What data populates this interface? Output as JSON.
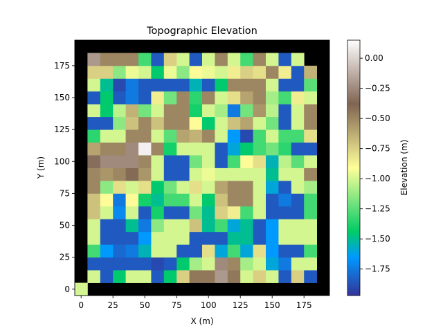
{
  "chart_data": {
    "type": "heatmap",
    "title": "Topographic Elevation",
    "xlabel": "X (m)",
    "ylabel": "Y (m)",
    "colorbar_label": "Elevation (m)",
    "colormap": "terrain",
    "xlim": [
      -5,
      195
    ],
    "ylim": [
      -5,
      195
    ],
    "xticks": [
      0,
      25,
      50,
      75,
      100,
      125,
      150,
      175
    ],
    "yticks": [
      0,
      25,
      50,
      75,
      100,
      125,
      150,
      175
    ],
    "color_range": [
      -1.97,
      0.15
    ],
    "colorbar_ticks": [
      0.0,
      -0.25,
      -0.5,
      -0.75,
      -1.0,
      -1.25,
      -1.5,
      -1.75
    ],
    "grid": false,
    "cell_size": 10,
    "x_origin": 0,
    "y_origin": 0,
    "background_value": "black",
    "elevations": [
      [
        -1.0,
        null,
        null,
        null,
        null,
        null,
        null,
        null,
        null,
        null,
        null,
        null,
        null,
        null,
        null,
        null,
        null,
        null,
        null,
        null
      ],
      [
        null,
        -1.0,
        -1.85,
        -1.45,
        -1.0,
        -1.0,
        -1.85,
        -1.45,
        -0.75,
        -0.45,
        -0.45,
        -0.2,
        -0.45,
        -1.0,
        -0.75,
        -1.0,
        -1.85,
        -0.75,
        -1.85,
        null
      ],
      [
        null,
        -1.85,
        -1.85,
        -1.85,
        -1.85,
        -1.85,
        -1.9,
        -1.85,
        -1.45,
        -1.1,
        -1.0,
        -0.25,
        -0.5,
        -1.1,
        -1.0,
        -1.6,
        -1.75,
        -1.0,
        -1.0,
        null
      ],
      [
        null,
        -1.3,
        -1.65,
        -1.8,
        -1.75,
        -1.55,
        -1.0,
        -1.0,
        -1.85,
        -1.85,
        -0.8,
        -1.6,
        -1.3,
        -1.6,
        -0.8,
        -1.65,
        -1.85,
        -1.85,
        -1.3,
        null
      ],
      [
        null,
        -1.0,
        -1.85,
        -1.85,
        -1.85,
        -1.65,
        -1.0,
        -1.0,
        -1.0,
        -1.85,
        -1.85,
        -1.85,
        -1.5,
        -1.5,
        -1.85,
        -1.65,
        -1.0,
        -1.0,
        -1.0,
        null
      ],
      [
        null,
        -1.0,
        -1.85,
        -1.85,
        -1.5,
        -1.75,
        -1.15,
        -1.0,
        -1.0,
        -0.7,
        -1.5,
        -1.3,
        -1.6,
        -1.5,
        -1.85,
        -1.65,
        -1.0,
        -1.0,
        -1.0,
        null
      ],
      [
        null,
        -0.7,
        -1.0,
        -1.7,
        -1.0,
        -1.85,
        -1.4,
        -1.85,
        -1.85,
        -1.2,
        -1.5,
        -0.75,
        -0.85,
        -1.3,
        -1.0,
        -1.85,
        -1.85,
        -1.85,
        -1.3,
        null
      ],
      [
        null,
        -0.7,
        -0.9,
        -1.75,
        -0.9,
        -1.4,
        -1.5,
        -1.3,
        -1.3,
        -1.0,
        -1.45,
        -0.7,
        -0.5,
        -0.5,
        -1.0,
        -1.85,
        -1.75,
        -1.85,
        -1.3,
        null
      ],
      [
        null,
        -0.5,
        -1.15,
        -0.8,
        -1.0,
        -0.8,
        -1.45,
        -1.2,
        -1.0,
        -0.8,
        -1.0,
        -0.6,
        -0.5,
        -0.5,
        -1.0,
        -1.6,
        -1.85,
        -1.0,
        -1.1,
        null
      ],
      [
        null,
        -0.5,
        -0.55,
        -0.5,
        -0.4,
        -0.55,
        -1.0,
        -1.85,
        -1.85,
        -1.0,
        -0.95,
        -1.0,
        -1.0,
        -1.0,
        -1.0,
        -1.5,
        -1.0,
        -1.0,
        -0.5,
        null
      ],
      [
        null,
        -0.35,
        -0.25,
        -0.25,
        -0.25,
        -0.5,
        -1.0,
        -1.85,
        -1.85,
        -1.2,
        -1.0,
        -1.85,
        -1.3,
        -0.9,
        -0.8,
        -1.55,
        -1.05,
        -1.25,
        -1.0,
        null
      ],
      [
        null,
        -0.6,
        -0.5,
        -0.5,
        -0.25,
        0.1,
        -0.5,
        -1.4,
        -1.0,
        -1.0,
        -1.0,
        -1.85,
        -1.6,
        -1.45,
        -1.3,
        -1.2,
        -1.35,
        -1.85,
        -1.85,
        null
      ],
      [
        null,
        -1.35,
        -1.0,
        -1.0,
        -0.5,
        -0.5,
        -1.0,
        -1.25,
        -0.6,
        -0.65,
        -0.5,
        -1.0,
        -1.65,
        -1.9,
        -1.3,
        -1.0,
        -1.3,
        -1.3,
        -0.8,
        null
      ],
      [
        null,
        -1.85,
        -1.85,
        -1.15,
        -0.7,
        -0.5,
        -0.7,
        -0.5,
        -0.5,
        -0.9,
        -1.45,
        -1.0,
        -0.7,
        -0.6,
        -1.0,
        -1.2,
        -1.85,
        -1.0,
        -0.5,
        null
      ],
      [
        null,
        -1.0,
        -1.45,
        -1.05,
        -0.65,
        -1.2,
        -1.0,
        -0.5,
        -0.5,
        -1.4,
        -1.0,
        -1.1,
        -1.75,
        -1.2,
        -0.55,
        -1.05,
        -1.85,
        -1.0,
        -0.5,
        null
      ],
      [
        null,
        -1.85,
        -1.45,
        -1.85,
        -1.75,
        -1.85,
        -0.85,
        -1.2,
        -0.5,
        -1.35,
        -0.5,
        -1.0,
        -0.8,
        -0.6,
        -0.5,
        -1.1,
        -1.3,
        -0.85,
        -1.0,
        null
      ],
      [
        null,
        -1.0,
        -1.5,
        -1.9,
        -1.75,
        -1.85,
        -1.85,
        -1.85,
        -1.85,
        -1.55,
        -1.85,
        -1.45,
        -0.5,
        -0.5,
        -0.5,
        -1.0,
        -1.85,
        -1.85,
        -1.25,
        null
      ],
      [
        null,
        -0.75,
        -0.75,
        -1.15,
        -0.95,
        -1.0,
        -1.45,
        -0.95,
        -1.15,
        -0.9,
        -0.95,
        -1.0,
        -0.85,
        -0.75,
        -0.8,
        -0.5,
        -0.85,
        -1.85,
        -0.65,
        null
      ],
      [
        null,
        -0.2,
        -0.5,
        -0.5,
        -0.5,
        -1.3,
        -1.85,
        -0.75,
        -1.0,
        -1.85,
        -1.0,
        -0.5,
        -1.0,
        -1.3,
        -0.5,
        -1.0,
        -1.85,
        -1.0,
        null,
        null
      ],
      [
        null,
        null,
        null,
        null,
        null,
        null,
        null,
        null,
        null,
        null,
        null,
        null,
        null,
        null,
        null,
        null,
        null,
        null,
        null,
        null
      ]
    ]
  }
}
